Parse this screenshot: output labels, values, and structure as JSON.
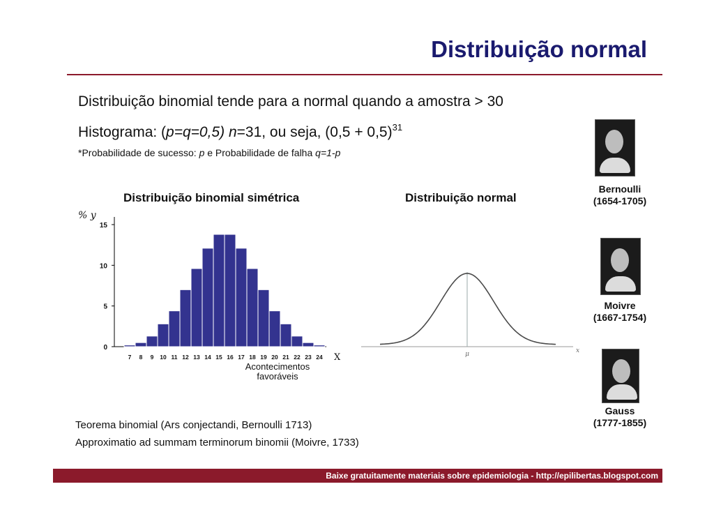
{
  "title": "Distribuição normal",
  "line1": "Distribuição binomial tende para a normal quando a amostra > 30",
  "line2": {
    "prefix": "Histograma: (",
    "pq": "p=q=0,5)",
    "n": " n",
    "rest": "=31, ou seja, (0,5 + 0,5)",
    "exponent": "31"
  },
  "line3": {
    "prefix": "*Probabilidade de sucesso: ",
    "p": "p",
    "mid": " e Probabilidade de falha ",
    "q": "q=1-p"
  },
  "chart_data": [
    {
      "type": "bar",
      "title": "Distribuição binomial simétrica",
      "ylabel": "% y",
      "xlabel": "Acontecimentos favoráveis",
      "x_end_label": "X",
      "categories": [
        "7",
        "8",
        "9",
        "10",
        "11",
        "12",
        "13",
        "14",
        "15",
        "16",
        "17",
        "18",
        "19",
        "20",
        "21",
        "22",
        "23",
        "24"
      ],
      "values": [
        0.2,
        0.5,
        1.3,
        2.8,
        4.4,
        7.0,
        9.6,
        12.1,
        13.8,
        13.8,
        12.1,
        9.6,
        7.0,
        4.4,
        2.8,
        1.3,
        0.5,
        0.2
      ],
      "yticks": [
        0,
        5,
        10,
        15
      ],
      "ylim": [
        0,
        15
      ],
      "color": "#33338f"
    },
    {
      "type": "line",
      "title": "Distribuição normal",
      "mu_label": "μ",
      "x_label": "x",
      "curve": "gaussian",
      "color": "#4a4a4a"
    }
  ],
  "portraits": [
    {
      "name": "Bernoulli",
      "years": "(1654-1705)"
    },
    {
      "name": "Moivre",
      "years": "(1667-1754)"
    },
    {
      "name": "Gauss",
      "years": "(1777-1855)"
    }
  ],
  "foot1": "Teorema binomial (Ars conjectandi, Bernoulli 1713)",
  "foot2": "Approximatio ad summam terminorum binomii (Moivre, 1733)",
  "footer": "Baixe gratuitamente materiais sobre epidemiologia - http://epilibertas.blogspot.com"
}
